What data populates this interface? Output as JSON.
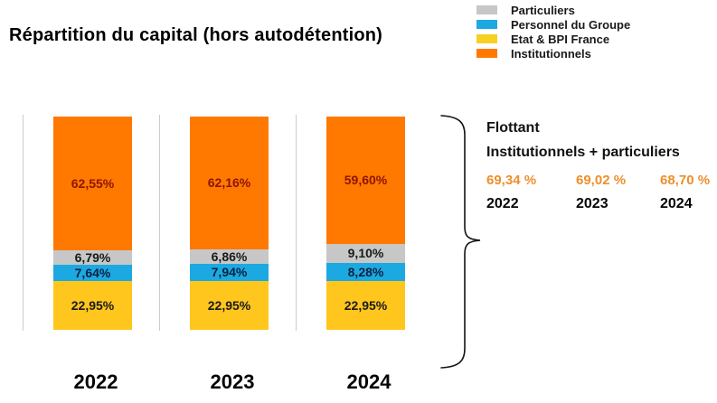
{
  "title": "Répartition du capital (hors autodétention)",
  "legend": [
    {
      "label": "Particuliers",
      "color": "#c7c7c7"
    },
    {
      "label": "Personnel du Groupe",
      "color": "#1ca9e2"
    },
    {
      "label": "Etat & BPI France",
      "color": "#f7d021"
    },
    {
      "label": "Institutionnels",
      "color": "#ff7900"
    }
  ],
  "chart_data": {
    "type": "bar",
    "stacked": true,
    "title": "Répartition du capital (hors autodétention)",
    "categories": [
      "2022",
      "2023",
      "2024"
    ],
    "series": [
      {
        "name": "Institutionnels",
        "color": "#ff7900",
        "label_color": "#8c1500",
        "values": [
          62.55,
          62.16,
          59.6
        ],
        "labels": [
          "62,55%",
          "62,16%",
          "59,60%"
        ]
      },
      {
        "name": "Particuliers",
        "color": "#c7c7c7",
        "label_color": "#1a1a1a",
        "values": [
          6.79,
          6.86,
          9.1
        ],
        "labels": [
          "6,79%",
          "6,86%",
          "9,10%"
        ]
      },
      {
        "name": "Personnel du Groupe",
        "color": "#1ca9e2",
        "label_color": "#0b2240",
        "values": [
          7.64,
          7.94,
          8.28
        ],
        "labels": [
          "7,64%",
          "7,94%",
          "8,28%"
        ]
      },
      {
        "name": "Etat & BPI France",
        "color": "#ffc61e",
        "label_color": "#1a1a1a",
        "values": [
          22.95,
          22.95,
          22.95
        ],
        "labels": [
          "22,95%",
          "22,95%",
          "22,95%"
        ]
      }
    ],
    "ylim": [
      0,
      100
    ],
    "grid": false,
    "legend_position": "top-right"
  },
  "flottant": {
    "title": "Flottant",
    "subtitle": "Institutionnels + particuliers",
    "accent_color": "#ee8f2b",
    "entries": [
      {
        "year": "2022",
        "value": "69,34 %"
      },
      {
        "year": "2023",
        "value": "69,02 %"
      },
      {
        "year": "2024",
        "value": "68,70 %"
      }
    ]
  }
}
